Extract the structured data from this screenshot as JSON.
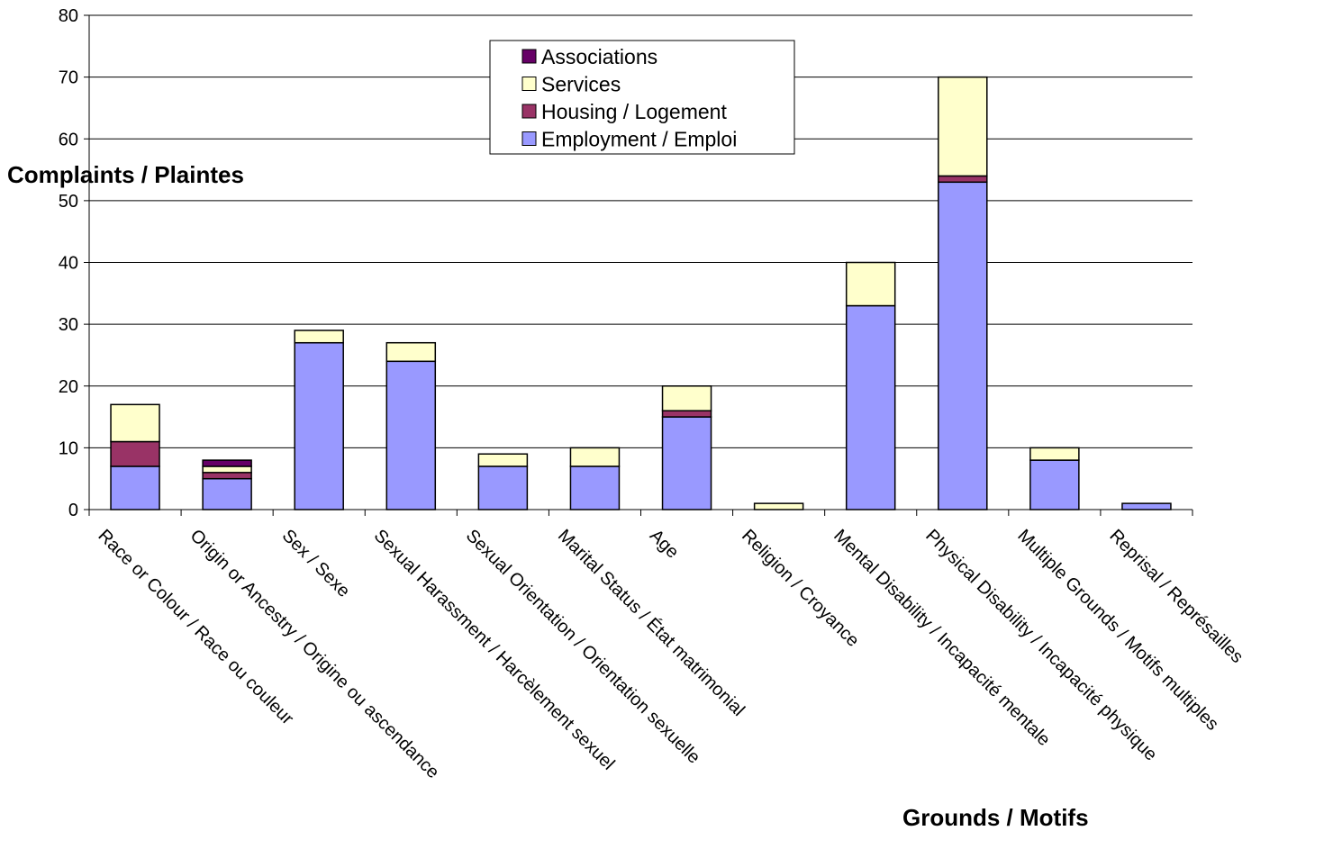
{
  "chart_data": {
    "type": "bar",
    "stacked": true,
    "title": "",
    "ylabel": "Complaints / Plaintes",
    "xlabel": "Grounds / Motifs",
    "ylim": [
      0,
      80
    ],
    "yticks": [
      0,
      10,
      20,
      30,
      40,
      50,
      60,
      70,
      80
    ],
    "grid": "horizontal",
    "legend_position": "top-center",
    "categories": [
      "Race or Colour / Race ou couleur",
      "Origin or Ancestry / Origine ou ascendance",
      "Sex / Sexe",
      "Sexual Harassment / Harcèlement sexuel",
      "Sexual Orientation / Orientation sexuelle",
      "Marital Status / État matrimonial",
      "Age",
      "Religion / Croyance",
      "Mental Disability / Incapacité mentale",
      "Physical Disability / Incapacité physique",
      "Multiple Grounds / Motifs multiples",
      "Reprisal / Représailles"
    ],
    "series": [
      {
        "name": "Employment / Emploi",
        "color": "#9999ff",
        "values": [
          7,
          5,
          27,
          24,
          7,
          7,
          15,
          0,
          33,
          53,
          8,
          1
        ]
      },
      {
        "name": "Housing / Logement",
        "color": "#993366",
        "values": [
          4,
          1,
          0,
          0,
          0,
          0,
          1,
          0,
          0,
          1,
          0,
          0
        ]
      },
      {
        "name": "Services",
        "color": "#ffffcc",
        "values": [
          6,
          1,
          2,
          3,
          2,
          3,
          4,
          1,
          7,
          16,
          2,
          0
        ]
      },
      {
        "name": "Associations",
        "color": "#660066",
        "values": [
          0,
          1,
          0,
          0,
          0,
          0,
          0,
          0,
          0,
          0,
          0,
          0
        ]
      }
    ],
    "legend_order": [
      "Associations",
      "Services",
      "Housing / Logement",
      "Employment / Emploi"
    ]
  }
}
